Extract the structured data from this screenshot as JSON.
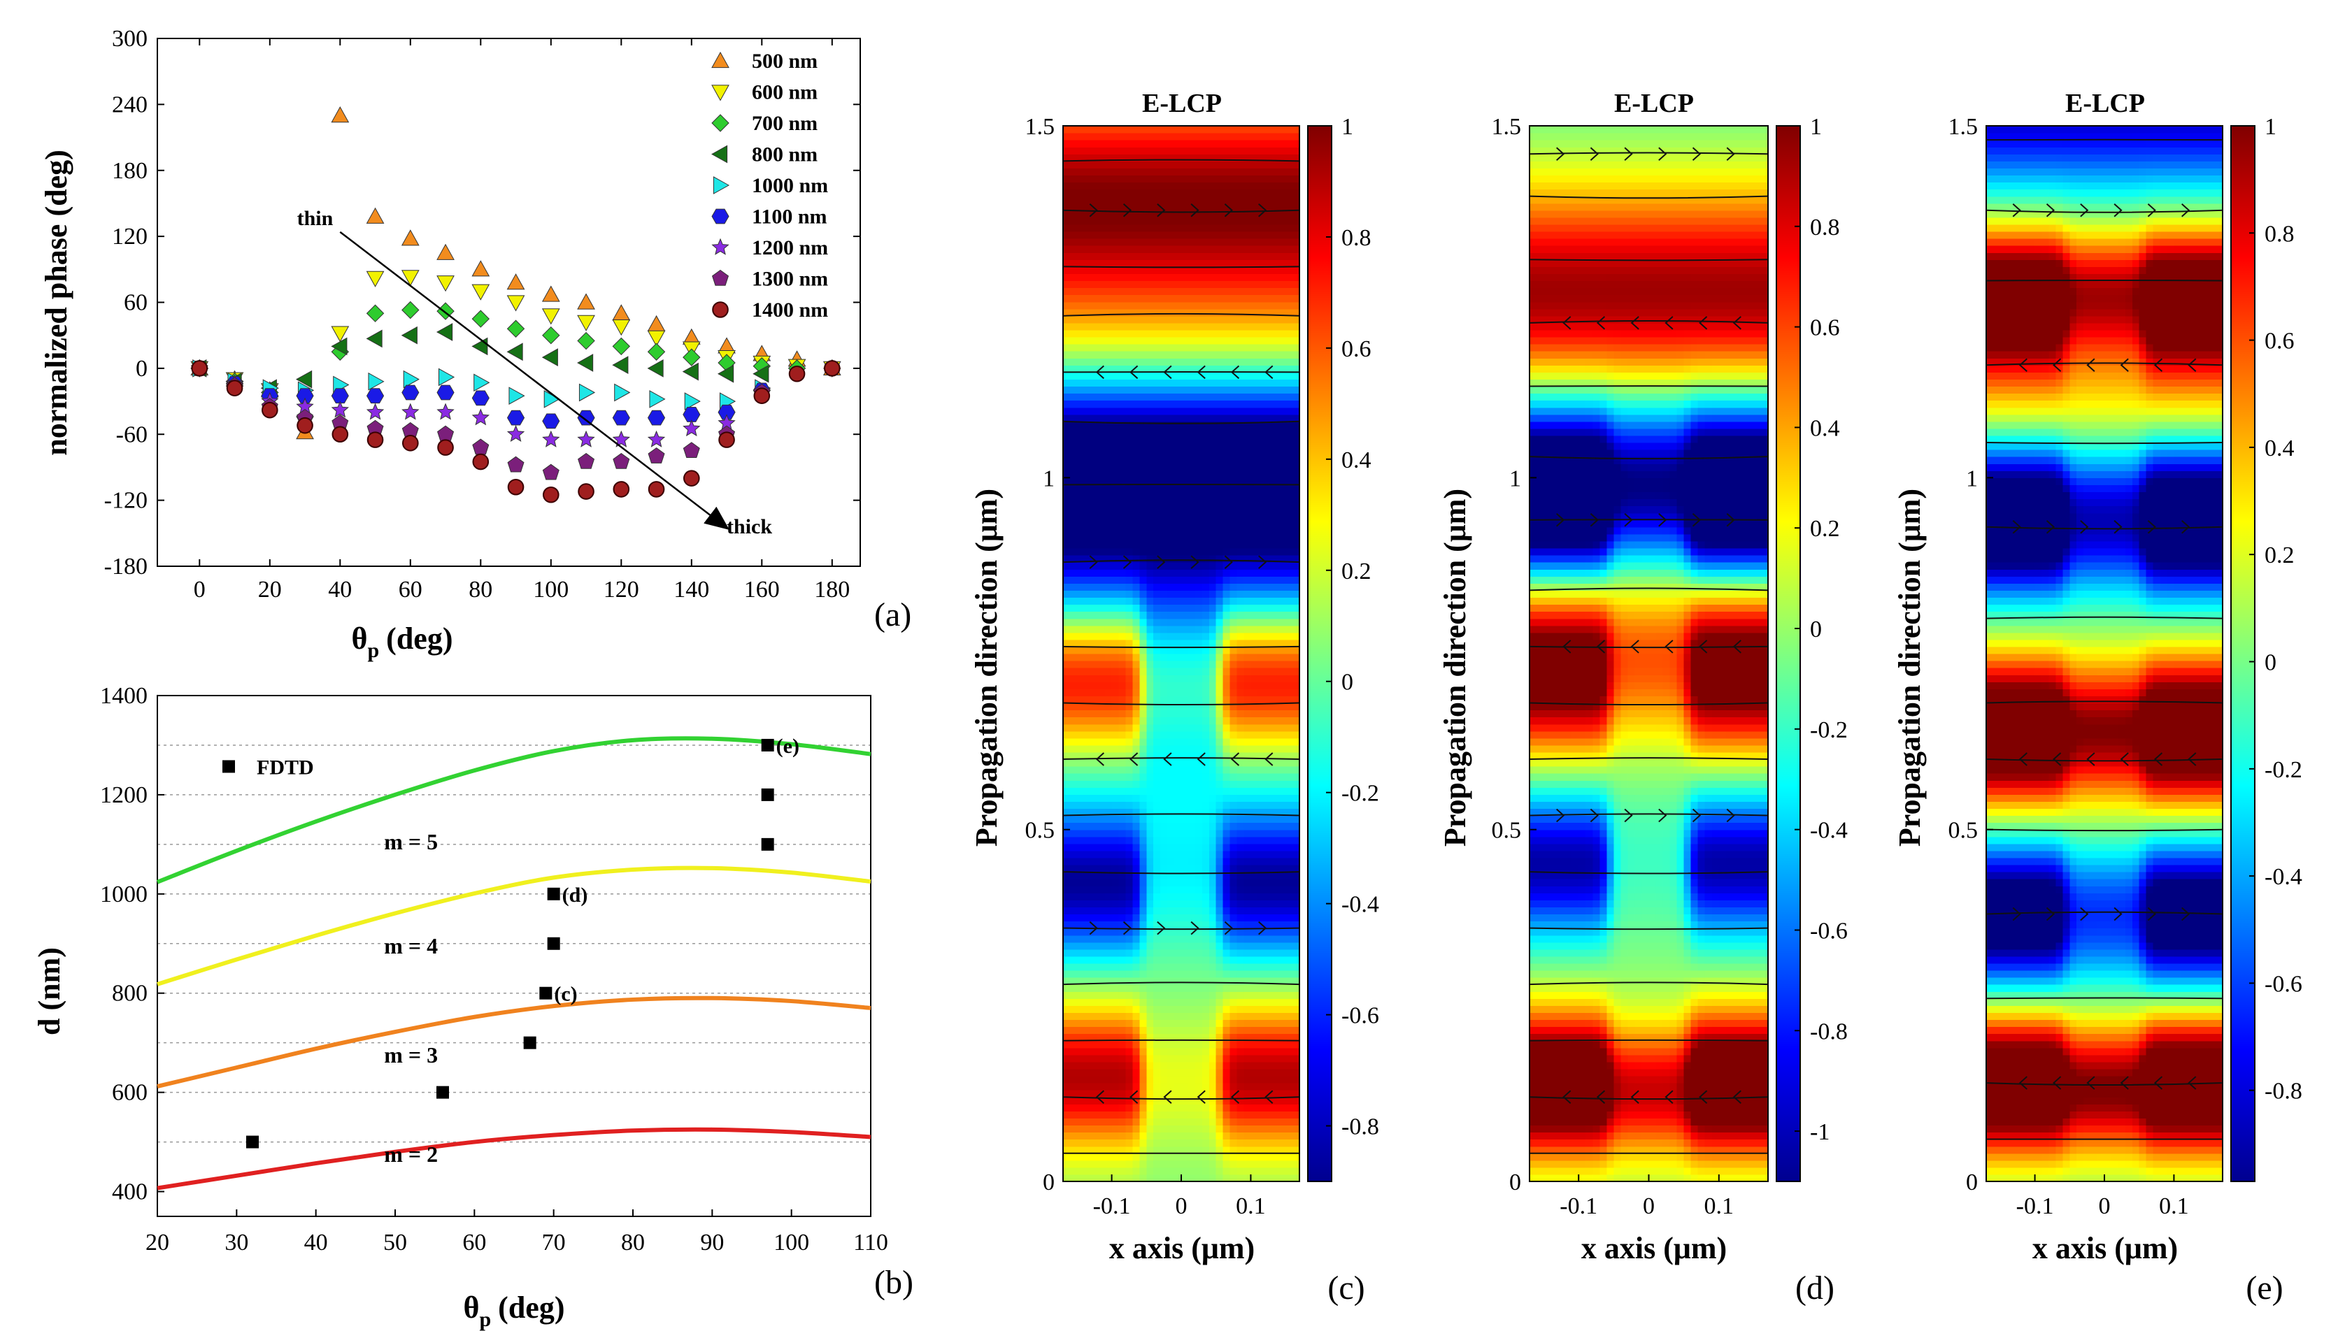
{
  "chart_data": [
    {
      "panel": "(a)",
      "type": "scatter",
      "xlabel": "θ",
      "xlabel_sub": "p",
      "xlabel_unit": "(deg)",
      "ylabel": "normalized phase (deg)",
      "xlim": [
        -12,
        188
      ],
      "ylim": [
        -180,
        300
      ],
      "xticks": [
        0,
        20,
        40,
        60,
        80,
        100,
        120,
        140,
        160,
        180
      ],
      "yticks": [
        -180,
        -120,
        -60,
        0,
        60,
        120,
        180,
        240,
        300
      ],
      "legend_position": "top-right",
      "annotations": [
        {
          "text": "thin",
          "at": [
            40,
            124
          ]
        },
        {
          "text": "thick",
          "at": [
            150,
            -150
          ]
        }
      ],
      "arrow": {
        "from": [
          40,
          124
        ],
        "to": [
          150,
          -145
        ]
      },
      "series": [
        {
          "name": "500 nm",
          "marker": "triangle-up",
          "color": "#F28C1E",
          "x": [
            0,
            10,
            20,
            30,
            40,
            50,
            60,
            70,
            80,
            90,
            100,
            110,
            120,
            130,
            140,
            150,
            160,
            170,
            180
          ],
          "y": [
            0,
            -10,
            -20,
            -58,
            230,
            138,
            118,
            105,
            90,
            78,
            67,
            60,
            50,
            40,
            28,
            20,
            13,
            8,
            0
          ]
        },
        {
          "name": "600 nm",
          "marker": "triangle-down",
          "color": "#F2F200",
          "x": [
            0,
            10,
            20,
            30,
            40,
            50,
            60,
            70,
            80,
            90,
            100,
            110,
            120,
            130,
            140,
            150,
            160,
            170,
            180
          ],
          "y": [
            0,
            -10,
            -20,
            -50,
            32,
            82,
            83,
            78,
            70,
            60,
            48,
            42,
            38,
            28,
            18,
            10,
            5,
            2,
            0
          ]
        },
        {
          "name": "700 nm",
          "marker": "diamond",
          "color": "#2ECC2E",
          "x": [
            0,
            10,
            20,
            30,
            40,
            50,
            60,
            70,
            80,
            90,
            100,
            110,
            120,
            130,
            140,
            150,
            160,
            170,
            180
          ],
          "y": [
            0,
            -12,
            -22,
            -44,
            15,
            50,
            53,
            52,
            45,
            36,
            30,
            25,
            20,
            15,
            10,
            5,
            2,
            0,
            0
          ]
        },
        {
          "name": "800 nm",
          "marker": "triangle-left",
          "color": "#157015",
          "x": [
            0,
            10,
            20,
            30,
            40,
            50,
            60,
            70,
            80,
            90,
            100,
            110,
            120,
            130,
            140,
            150,
            160
          ],
          "y": [
            0,
            -12,
            -18,
            -10,
            20,
            27,
            30,
            33,
            20,
            15,
            10,
            5,
            3,
            0,
            -3,
            -5,
            -5
          ]
        },
        {
          "name": "1000 nm",
          "marker": "triangle-right",
          "color": "#1EE6E6",
          "x": [
            0,
            10,
            20,
            30,
            40,
            50,
            60,
            70,
            80,
            90,
            100,
            110,
            120,
            130,
            140,
            150,
            160
          ],
          "y": [
            0,
            -12,
            -18,
            -20,
            -15,
            -12,
            -10,
            -8,
            -13,
            -25,
            -28,
            -22,
            -22,
            -28,
            -30,
            -30,
            -18
          ]
        },
        {
          "name": "1100 nm",
          "marker": "hexagon",
          "color": "#1A1AE6",
          "x": [
            0,
            10,
            20,
            30,
            40,
            50,
            60,
            70,
            80,
            90,
            100,
            110,
            120,
            130,
            140,
            150,
            160
          ],
          "y": [
            0,
            -14,
            -25,
            -25,
            -25,
            -25,
            -22,
            -22,
            -27,
            -45,
            -48,
            -45,
            -45,
            -45,
            -42,
            -40,
            -20
          ]
        },
        {
          "name": "1200 nm",
          "marker": "star",
          "color": "#8A2BE2",
          "x": [
            0,
            10,
            20,
            30,
            40,
            50,
            60,
            70,
            80,
            90,
            100,
            110,
            120,
            130,
            140,
            150,
            160
          ],
          "y": [
            0,
            -14,
            -30,
            -35,
            -38,
            -40,
            -40,
            -40,
            -45,
            -60,
            -65,
            -65,
            -65,
            -65,
            -55,
            -50,
            -22
          ]
        },
        {
          "name": "1300 nm",
          "marker": "pentagon",
          "color": "#7B1F7B",
          "x": [
            0,
            10,
            20,
            30,
            40,
            50,
            60,
            70,
            80,
            90,
            100,
            110,
            120,
            130,
            140,
            150,
            160
          ],
          "y": [
            0,
            -16,
            -35,
            -45,
            -50,
            -55,
            -57,
            -60,
            -72,
            -88,
            -95,
            -85,
            -85,
            -80,
            -75,
            -60,
            -22
          ]
        },
        {
          "name": "1400 nm",
          "marker": "ball",
          "color": "#A01E1E",
          "x": [
            0,
            10,
            20,
            30,
            40,
            50,
            60,
            70,
            80,
            90,
            100,
            110,
            120,
            130,
            140,
            150,
            160,
            170,
            180
          ],
          "y": [
            0,
            -18,
            -38,
            -52,
            -60,
            -65,
            -68,
            -72,
            -85,
            -108,
            -115,
            -112,
            -110,
            -110,
            -100,
            -65,
            -25,
            -5,
            0
          ]
        }
      ]
    },
    {
      "panel": "(b)",
      "type": "line",
      "xlabel": "θ",
      "xlabel_sub": "p",
      "xlabel_unit": "(deg)",
      "ylabel": "d (nm)",
      "xlim": [
        20,
        110
      ],
      "ylim": [
        350,
        1400
      ],
      "xticks": [
        20,
        30,
        40,
        50,
        60,
        70,
        80,
        90,
        100,
        110
      ],
      "yticks": [
        400,
        600,
        800,
        1000,
        1200,
        1400
      ],
      "grid_y": [
        500,
        600,
        700,
        800,
        900,
        1000,
        1100,
        1200,
        1300
      ],
      "series": [
        {
          "name": "m = 2",
          "color": "#E02020",
          "label_at": [
            52,
            460
          ],
          "x": [
            20,
            30,
            40,
            50,
            60,
            70,
            80,
            90,
            100,
            110
          ],
          "y": [
            407,
            432,
            457,
            480,
            500,
            514,
            523,
            525,
            520,
            510
          ]
        },
        {
          "name": "m = 3",
          "color": "#F0821E",
          "label_at": [
            52,
            660
          ],
          "x": [
            20,
            30,
            40,
            50,
            60,
            70,
            80,
            90,
            100,
            110
          ],
          "y": [
            612,
            650,
            688,
            722,
            752,
            774,
            787,
            790,
            784,
            770
          ]
        },
        {
          "name": "m = 4",
          "color": "#F0F01E",
          "label_at": [
            52,
            880
          ],
          "x": [
            20,
            30,
            40,
            50,
            60,
            70,
            80,
            90,
            100,
            110
          ],
          "y": [
            818,
            868,
            916,
            961,
            1001,
            1033,
            1049,
            1052,
            1043,
            1025
          ]
        },
        {
          "name": "m = 5",
          "color": "#32D232",
          "label_at": [
            52,
            1090
          ],
          "x": [
            20,
            30,
            40,
            50,
            60,
            70,
            80,
            90,
            100,
            110
          ],
          "y": [
            1024,
            1087,
            1146,
            1200,
            1249,
            1288,
            1310,
            1313,
            1302,
            1282
          ]
        }
      ],
      "fdtd": {
        "name": "FDTD",
        "legend_at": [
          29,
          1257
        ],
        "x": [
          32,
          56,
          67,
          69,
          70,
          70,
          97,
          97,
          97
        ],
        "y": [
          500,
          600,
          700,
          800,
          900,
          1000,
          1100,
          1200,
          1300
        ],
        "tags": [
          "",
          "",
          "",
          "(c)",
          "",
          "(d)",
          "",
          "",
          "(e)"
        ]
      }
    },
    {
      "panel": "(c)",
      "type": "heatmap",
      "title": "E-LCP",
      "xlabel": "x axis (μm)",
      "ylabel": "Propagation direction (μm)",
      "xlim": [
        -0.17,
        0.17
      ],
      "ylim": [
        0,
        1.5
      ],
      "xticks": [
        "-0.1",
        "0",
        "0.1"
      ],
      "yticks": [
        "0",
        "0.5",
        "1",
        "1.5"
      ],
      "colorbar_ticks": [
        "1",
        "0.8",
        "0.6",
        "0.4",
        "0.2",
        "0",
        "-0.2",
        "-0.4",
        "-0.6",
        "-0.8"
      ],
      "colorbar_range": [
        -0.9,
        1.0
      ],
      "pillar_halfwidth": 0.057,
      "uniform_bands": [
        [
          0,
          0.12,
          0.02
        ],
        [
          0.12,
          0.05,
          0.01
        ],
        [
          0.36,
          0.1,
          0.08
        ],
        [
          0.52,
          0.18,
          -0.2
        ],
        [
          0.62,
          0.06,
          -0.1
        ],
        [
          0.91,
          0.1,
          -0.85
        ],
        [
          1.04,
          0.08,
          -0.95
        ],
        [
          1.24,
          0.1,
          0.3
        ],
        [
          1.4,
          0.1,
          0.9
        ],
        [
          1.52,
          0.12,
          0.05
        ]
      ],
      "pillar_bands": [
        [
          0.15,
          0.07,
          0.9
        ],
        [
          0.42,
          0.07,
          -0.85
        ],
        [
          0.71,
          0.08,
          0.95
        ]
      ],
      "center_bands": [
        [
          0.15,
          0.07,
          0.2
        ],
        [
          0.42,
          0.07,
          -0.15
        ],
        [
          0.71,
          0.08,
          0.1
        ]
      ],
      "stream_y": [
        0.04,
        0.12,
        0.2,
        0.28,
        0.36,
        0.44,
        0.52,
        0.6,
        0.68,
        0.76,
        0.88,
        0.99,
        1.08,
        1.15,
        1.23,
        1.3,
        1.38,
        1.45
      ],
      "arrow_rows": [
        0.12,
        0.36,
        0.6,
        0.88,
        1.15,
        1.38
      ]
    },
    {
      "panel": "(d)",
      "type": "heatmap",
      "title": "E-LCP",
      "xlabel": "x axis (μm)",
      "ylabel": "Propagation direction (μm)",
      "xlim": [
        -0.17,
        0.17
      ],
      "ylim": [
        0,
        1.5
      ],
      "xticks": [
        "-0.1",
        "0",
        "0.1"
      ],
      "yticks": [
        "0",
        "0.5",
        "1",
        "1.5"
      ],
      "colorbar_ticks": [
        "1",
        "0.8",
        "0.6",
        "0.4",
        "0.2",
        "0",
        "-0.2",
        "-0.4",
        "-0.6",
        "-0.8",
        "-1"
      ],
      "colorbar_range": [
        -1.1,
        1.0
      ],
      "pillar_halfwidth": 0.057,
      "uniform_bands": [
        [
          0,
          0.12,
          0.05
        ],
        [
          0.12,
          0.06,
          0.5
        ],
        [
          0.4,
          0.12,
          0.0
        ],
        [
          0.55,
          0.1,
          -0.05
        ],
        [
          0.78,
          0.1,
          0.35
        ],
        [
          0.98,
          0.08,
          -0.7
        ],
        [
          1.06,
          0.07,
          -0.2
        ],
        [
          1.25,
          0.09,
          0.85
        ],
        [
          1.38,
          0.09,
          0.25
        ],
        [
          1.5,
          0.1,
          -0.1
        ]
      ],
      "pillar_bands": [
        [
          0.15,
          0.07,
          0.95
        ],
        [
          0.45,
          0.07,
          -0.9
        ],
        [
          0.72,
          0.08,
          0.95
        ],
        [
          0.96,
          0.08,
          -0.95
        ]
      ],
      "center_bands": [
        [
          0.15,
          0.07,
          0.35
        ],
        [
          0.45,
          0.07,
          -0.1
        ],
        [
          0.72,
          0.08,
          0.3
        ],
        [
          0.96,
          0.08,
          -0.25
        ]
      ],
      "stream_y": [
        0.04,
        0.12,
        0.2,
        0.28,
        0.36,
        0.44,
        0.52,
        0.6,
        0.68,
        0.76,
        0.84,
        0.94,
        1.03,
        1.13,
        1.22,
        1.31,
        1.4,
        1.46
      ],
      "arrow_rows": [
        0.12,
        0.52,
        0.76,
        0.94,
        1.22,
        1.46
      ]
    },
    {
      "panel": "(e)",
      "type": "heatmap",
      "title": "E-LCP",
      "xlabel": "x axis (μm)",
      "ylabel": "Propagation direction (μm)",
      "xlim": [
        -0.17,
        0.17
      ],
      "ylim": [
        0,
        1.5
      ],
      "xticks": [
        "-0.1",
        "0",
        "0.1"
      ],
      "yticks": [
        "0",
        "0.5",
        "1",
        "1.5"
      ],
      "colorbar_ticks": [
        "1",
        "0.8",
        "0.6",
        "0.4",
        "0.2",
        "0",
        "-0.2",
        "-0.4",
        "-0.6",
        "-0.8"
      ],
      "colorbar_range": [
        -0.97,
        1.0
      ],
      "pillar_halfwidth": 0.057,
      "uniform_bands": [
        [
          0,
          0.09,
          0.0
        ],
        [
          0.12,
          0.06,
          0.55
        ],
        [
          0.28,
          0.06,
          -0.05
        ],
        [
          0.38,
          0.07,
          -0.35
        ],
        [
          0.64,
          0.07,
          0.55
        ],
        [
          0.8,
          0.06,
          0.0
        ],
        [
          0.94,
          0.07,
          -0.6
        ],
        [
          1.12,
          0.06,
          0.25
        ],
        [
          1.27,
          0.06,
          0.55
        ],
        [
          1.4,
          0.05,
          0.0
        ],
        [
          1.52,
          0.08,
          -0.85
        ]
      ],
      "pillar_bands": [
        [
          0.15,
          0.07,
          0.95
        ],
        [
          0.38,
          0.07,
          -0.9
        ],
        [
          0.64,
          0.07,
          0.95
        ],
        [
          0.94,
          0.07,
          -0.9
        ],
        [
          1.24,
          0.07,
          0.95
        ]
      ],
      "center_bands": [
        [
          0.15,
          0.07,
          0.5
        ],
        [
          0.38,
          0.07,
          -0.3
        ],
        [
          0.64,
          0.07,
          0.45
        ],
        [
          0.94,
          0.07,
          -0.3
        ],
        [
          1.24,
          0.07,
          0.4
        ]
      ],
      "stream_y": [
        0.06,
        0.14,
        0.26,
        0.38,
        0.5,
        0.6,
        0.68,
        0.8,
        0.93,
        1.05,
        1.16,
        1.28,
        1.38,
        1.48
      ],
      "arrow_rows": [
        0.14,
        0.38,
        0.6,
        0.93,
        1.16,
        1.38
      ]
    }
  ]
}
